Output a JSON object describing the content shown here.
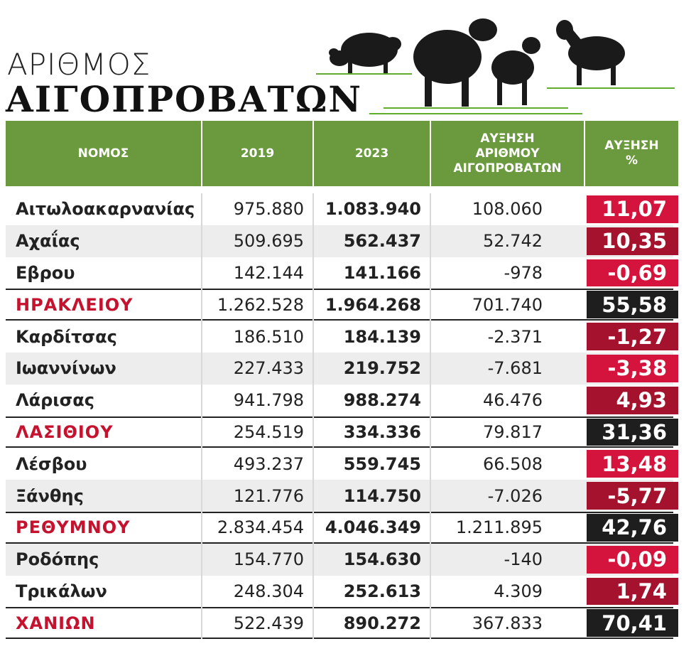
{
  "header": {
    "title_line1": "ΑΡΙΘΜΟΣ",
    "title_line2": "ΑΙΓΟΠΡΟΒΑΤΩΝ"
  },
  "table": {
    "header_color": "#6b9a3e",
    "columns": [
      "ΝΟΜΟΣ",
      "2019",
      "2023",
      "ΑΥΞΗΣΗ\nΑΡΙΘΜΟΥ\nΑΙΓΟΠΡΟΒΑΤΩΝ",
      "ΑΥΞΗΣΗ\n%"
    ],
    "rows": [
      {
        "cells": [
          "Αιτωλοακαρνανίας",
          "975.880",
          "1.083.940",
          "108.060",
          "11,07"
        ],
        "highlight": false,
        "color": "#d4143c"
      },
      {
        "cells": [
          "Αχαΐας",
          "509.695",
          "562.437",
          "52.742",
          "10,35"
        ],
        "highlight": false,
        "color": "#a5122d"
      },
      {
        "cells": [
          "Εβρου",
          "142.144",
          "141.166",
          "-978",
          "-0,69"
        ],
        "highlight": false,
        "color": "#d4143c"
      },
      {
        "cells": [
          "ΗΡΑΚΛΕΙΟΥ",
          "1.262.528",
          "1.964.268",
          "701.740",
          "55,58"
        ],
        "highlight": true,
        "color": "#1e1e1e"
      },
      {
        "cells": [
          "Καρδίτσας",
          "186.510",
          "184.139",
          "-2.371",
          "-1,27"
        ],
        "highlight": false,
        "color": "#a5122d"
      },
      {
        "cells": [
          "Ιωαννίνων",
          "227.433",
          "219.752",
          "-7.681",
          "-3,38"
        ],
        "highlight": false,
        "color": "#d4143c"
      },
      {
        "cells": [
          "Λάρισας",
          "941.798",
          "988.274",
          "46.476",
          "4,93"
        ],
        "highlight": false,
        "color": "#a5122d"
      },
      {
        "cells": [
          "ΛΑΣΙΘΙΟΥ",
          "254.519",
          "334.336",
          "79.817",
          "31,36"
        ],
        "highlight": true,
        "color": "#1e1e1e"
      },
      {
        "cells": [
          "Λέσβου",
          "493.237",
          "559.745",
          "66.508",
          "13,48"
        ],
        "highlight": false,
        "color": "#d4143c"
      },
      {
        "cells": [
          "Ξάνθης",
          "121.776",
          "114.750",
          "-7.026",
          "-5,77"
        ],
        "highlight": false,
        "color": "#a5122d"
      },
      {
        "cells": [
          "ΡΕΘΥΜΝΟΥ",
          "2.834.454",
          "4.046.349",
          "1.211.895",
          "42,76"
        ],
        "highlight": true,
        "color": "#1e1e1e"
      },
      {
        "cells": [
          "Ροδόπης",
          "154.770",
          "154.630",
          "-140",
          "-0,09"
        ],
        "highlight": false,
        "color": "#d4143c"
      },
      {
        "cells": [
          "Τρικάλων",
          "248.304",
          "252.613",
          "4.309",
          "1,74"
        ],
        "highlight": false,
        "color": "#a5122d"
      },
      {
        "cells": [
          "ΧΑΝΙΩΝ",
          "522.439",
          "890.272",
          "367.833",
          "70,41"
        ],
        "highlight": true,
        "color": "#1e1e1e"
      }
    ]
  }
}
